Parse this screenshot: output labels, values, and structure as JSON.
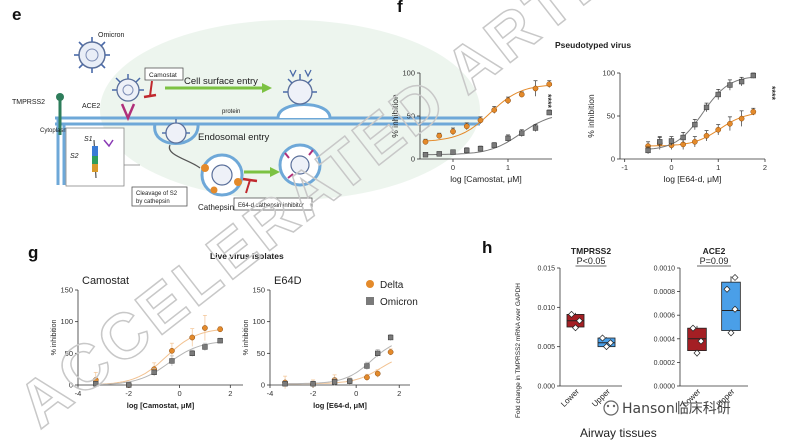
{
  "panel_letters": {
    "e": "e",
    "f": "f",
    "g": "g",
    "h": "h"
  },
  "watermark_text": "ACCELERATED ARTICLE",
  "wechat_credit": "Hanson临床科研",
  "colors": {
    "delta": "#e48a2a",
    "omicron": "#7a7a7a",
    "lower": "#a41f24",
    "upper": "#4a9fe8",
    "green_arrow": "#7cc242",
    "membrane": "#6ea8d8",
    "inhibitor": "#c0282d"
  },
  "diagram_e": {
    "labels": {
      "omicron": "Omicron",
      "tmprss2": "TMPRSS2",
      "ace2": "ACE2",
      "cytoplasm": "Cytoplasm",
      "camostat": "Camostat",
      "cell_surface_entry": "Cell surface entry",
      "protein": "protein",
      "endosomal_entry": "Endosomal entry",
      "s1": "S1",
      "s2": "S2",
      "cleavage": [
        "Cleavage of S2",
        "by cathepsin"
      ],
      "cathepsin": "Cathepsin",
      "e64d_inhibitor": "E64-d cathepsin inhibitor"
    }
  },
  "panel_f": {
    "title": "Pseudotyped virus",
    "significance": "****",
    "y_label": "% inhibition"
  },
  "panel_g": {
    "title": "Live virus isolates",
    "y_label": "% inhibition",
    "legend": [
      {
        "name": "Delta",
        "marker": "circle"
      },
      {
        "name": "Omicron",
        "marker": "square"
      }
    ]
  },
  "panel_h": {
    "y_label": "Fold change in TMPRSS2 mRNA over GAPDH",
    "x_title": "Airway tissues"
  },
  "chart_data": [
    {
      "id": "f-camostat",
      "type": "scatter",
      "xlabel": "log [Camostat, μM]",
      "ylabel": "% inhibition",
      "xlim": [
        -0.6,
        1.8
      ],
      "ylim": [
        0,
        100
      ],
      "xticks": [
        0,
        1
      ],
      "yticks": [
        0,
        50,
        100
      ],
      "series": [
        {
          "name": "Delta",
          "x": [
            -0.5,
            -0.25,
            0.0,
            0.25,
            0.5,
            0.75,
            1.0,
            1.25,
            1.5,
            1.75
          ],
          "y": [
            20,
            27,
            32,
            38,
            45,
            57,
            68,
            75,
            82,
            87
          ],
          "err": [
            3,
            3,
            4,
            4,
            4,
            4,
            4,
            3,
            9,
            4
          ]
        },
        {
          "name": "Omicron",
          "x": [
            -0.5,
            -0.25,
            0.0,
            0.25,
            0.5,
            0.75,
            1.0,
            1.25,
            1.5,
            1.75
          ],
          "y": [
            5,
            6,
            8,
            10,
            12,
            16,
            24,
            30,
            36,
            54
          ],
          "err": [
            2,
            2,
            2,
            3,
            3,
            3,
            4,
            4,
            4,
            3
          ]
        }
      ]
    },
    {
      "id": "f-e64d",
      "type": "scatter",
      "xlabel": "log [E64-d, μM]",
      "ylabel": "% inhibition",
      "xlim": [
        -1.1,
        2.0
      ],
      "ylim": [
        0,
        100
      ],
      "xticks": [
        -1,
        0,
        1,
        2
      ],
      "yticks": [
        0,
        50,
        100
      ],
      "series": [
        {
          "name": "Delta",
          "x": [
            -0.5,
            -0.25,
            0.0,
            0.25,
            0.5,
            0.75,
            1.0,
            1.25,
            1.5,
            1.75
          ],
          "y": [
            15,
            18,
            16,
            17,
            20,
            27,
            34,
            41,
            47,
            55
          ],
          "err": [
            5,
            7,
            5,
            6,
            6,
            6,
            6,
            8,
            9,
            4
          ]
        },
        {
          "name": "Omicron",
          "x": [
            -0.5,
            -0.25,
            0.0,
            0.25,
            0.5,
            0.75,
            1.0,
            1.25,
            1.5,
            1.75
          ],
          "y": [
            10,
            20,
            21,
            25,
            40,
            60,
            75,
            86,
            90,
            97
          ],
          "err": [
            4,
            6,
            5,
            6,
            6,
            5,
            6,
            6,
            5,
            3
          ]
        }
      ]
    },
    {
      "id": "g-camostat",
      "type": "scatter",
      "title": "Camostat",
      "xlabel": "log [Camostat, μM]",
      "ylabel": "% inhibition",
      "xlim": [
        -4,
        2.5
      ],
      "ylim": [
        0,
        150
      ],
      "xticks": [
        -4,
        -2,
        0,
        2
      ],
      "yticks": [
        0,
        50,
        100,
        150
      ],
      "series": [
        {
          "name": "Delta",
          "x": [
            -3.3,
            -2.0,
            -1.0,
            -0.3,
            0.5,
            1.0,
            1.6
          ],
          "y": [
            8,
            0,
            25,
            54,
            75,
            90,
            88
          ],
          "err": [
            12,
            4,
            10,
            12,
            14,
            20,
            4
          ]
        },
        {
          "name": "Omicron",
          "x": [
            -3.3,
            -2.0,
            -1.0,
            -0.3,
            0.5,
            1.0,
            1.6
          ],
          "y": [
            2,
            0,
            20,
            38,
            50,
            60,
            70
          ],
          "err": [
            4,
            4,
            6,
            8,
            5,
            6,
            4
          ]
        }
      ]
    },
    {
      "id": "g-e64d",
      "type": "scatter",
      "title": "E64D",
      "xlabel": "log [E64-d, μM]",
      "ylabel": "% inhibition",
      "xlim": [
        -4,
        2.5
      ],
      "ylim": [
        0,
        150
      ],
      "xticks": [
        -4,
        -2,
        0,
        2
      ],
      "yticks": [
        0,
        50,
        100,
        150
      ],
      "series": [
        {
          "name": "Delta",
          "x": [
            -3.3,
            -2.0,
            -1.0,
            -0.3,
            0.5,
            1.0,
            1.6
          ],
          "y": [
            4,
            2,
            8,
            6,
            12,
            18,
            52
          ],
          "err": [
            10,
            6,
            8,
            5,
            5,
            6,
            5
          ]
        },
        {
          "name": "Omicron",
          "x": [
            -3.3,
            -2.0,
            -1.0,
            -0.3,
            0.5,
            1.0,
            1.6
          ],
          "y": [
            2,
            2,
            5,
            6,
            30,
            50,
            75
          ],
          "err": [
            4,
            4,
            6,
            5,
            6,
            6,
            5
          ]
        }
      ]
    },
    {
      "id": "h-tmprss2",
      "type": "box",
      "title": "TMPRSS2",
      "ylim": [
        0,
        0.015
      ],
      "yticks": [
        "0.000",
        "0.005",
        "0.010",
        "0.015"
      ],
      "categories": [
        "Lower",
        "Upper"
      ],
      "p_value": "P<0.05",
      "boxes": [
        {
          "category": "Lower",
          "min": 0.0072,
          "q1": 0.0075,
          "median": 0.0083,
          "q3": 0.0091,
          "max": 0.0093,
          "points": [
            0.0074,
            0.0083,
            0.0091
          ]
        },
        {
          "category": "Upper",
          "min": 0.0048,
          "q1": 0.005,
          "median": 0.0055,
          "q3": 0.0061,
          "max": 0.0062,
          "points": [
            0.005,
            0.0055,
            0.0061
          ]
        }
      ]
    },
    {
      "id": "h-ace2",
      "type": "box",
      "title": "ACE2",
      "ylim": [
        0,
        0.001
      ],
      "yticks": [
        "0.0000",
        "0.0002",
        "0.0004",
        "0.0006",
        "0.0008",
        "0.0010"
      ],
      "categories": [
        "Lower",
        "Upper"
      ],
      "p_value": "P=0.09",
      "boxes": [
        {
          "category": "Lower",
          "min": 0.00025,
          "q1": 0.0003,
          "median": 0.0004,
          "q3": 0.00049,
          "max": 0.00051,
          "points": [
            0.00028,
            0.00038,
            0.00049
          ]
        },
        {
          "category": "Upper",
          "min": 0.00043,
          "q1": 0.00047,
          "median": 0.00064,
          "q3": 0.00088,
          "max": 0.00093,
          "points": [
            0.00045,
            0.00065,
            0.00082,
            0.00092
          ]
        }
      ]
    }
  ]
}
